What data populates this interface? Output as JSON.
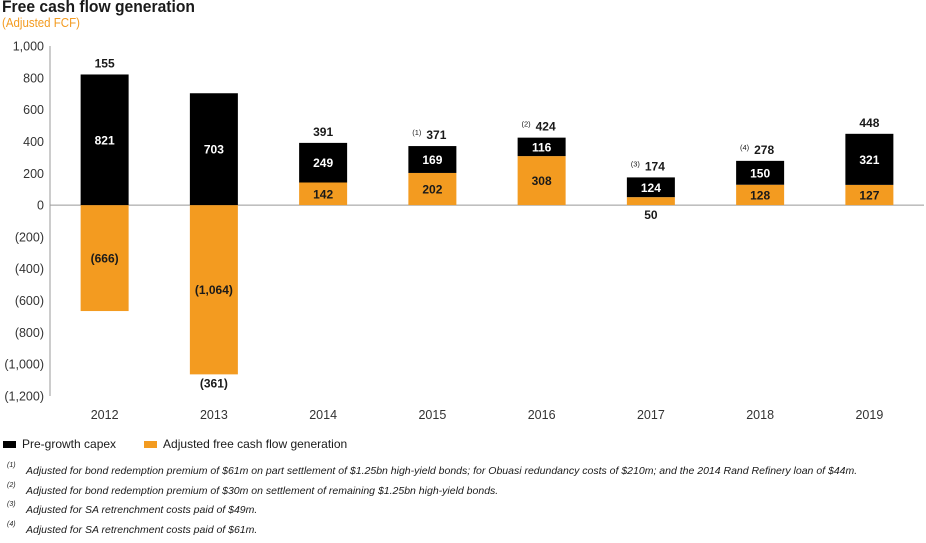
{
  "title": "Free cash flow generation",
  "subtitle": "(Adjusted FCF)",
  "colors": {
    "capex": "#000000",
    "fcf": "#f39b20",
    "axis": "#999999"
  },
  "chart_data": {
    "type": "bar",
    "stacked": true,
    "categories": [
      "2012",
      "2013",
      "2014",
      "2015",
      "2016",
      "2017",
      "2018",
      "2019"
    ],
    "ylim": [
      -1200,
      1000
    ],
    "yticks": [
      1000,
      800,
      600,
      400,
      200,
      0,
      -200,
      -400,
      -600,
      -800,
      -1000,
      -1200
    ],
    "ytick_labels": [
      "1,000",
      "800",
      "600",
      "400",
      "200",
      "0",
      "(200)",
      "(400)",
      "(600)",
      "(800)",
      "(1,000)",
      "(1,200)"
    ],
    "legend_position": "bottom-left",
    "grid": false,
    "series": [
      {
        "name": "Pre-growth capex",
        "values": [
          821,
          703,
          249,
          169,
          116,
          124,
          150,
          321
        ],
        "labels": [
          "821",
          "703",
          "249",
          "169",
          "116",
          "124",
          "150",
          "321"
        ]
      },
      {
        "name": "Adjusted free cash flow generation",
        "values": [
          -666,
          -1064,
          142,
          202,
          308,
          50,
          128,
          127
        ],
        "labels": [
          "(666)",
          "(1,064)",
          "142",
          "202",
          "308",
          "50",
          "128",
          "127"
        ]
      }
    ],
    "totals": [
      {
        "value": "155",
        "note": ""
      },
      {
        "value": "(361)",
        "note": ""
      },
      {
        "value": "391",
        "note": ""
      },
      {
        "value": "371",
        "note": "(1)"
      },
      {
        "value": "424",
        "note": "(2)"
      },
      {
        "value": "174",
        "note": "(3)"
      },
      {
        "value": "278",
        "note": "(4)"
      },
      {
        "value": "448",
        "note": ""
      }
    ]
  },
  "footnotes": [
    {
      "mark": "(1)",
      "text": "Adjusted for bond redemption premium of $61m on part settlement of $1.25bn high-yield bonds; for Obuasi redundancy costs of $210m; and the 2014 Rand Refinery loan of $44m."
    },
    {
      "mark": "(2)",
      "text": "Adjusted for bond redemption premium of $30m on settlement of remaining $1.25bn high-yield bonds."
    },
    {
      "mark": "(3)",
      "text": "Adjusted for SA retrenchment costs paid of $49m."
    },
    {
      "mark": "(4)",
      "text": "Adjusted for SA retrenchment costs paid of $61m."
    }
  ]
}
